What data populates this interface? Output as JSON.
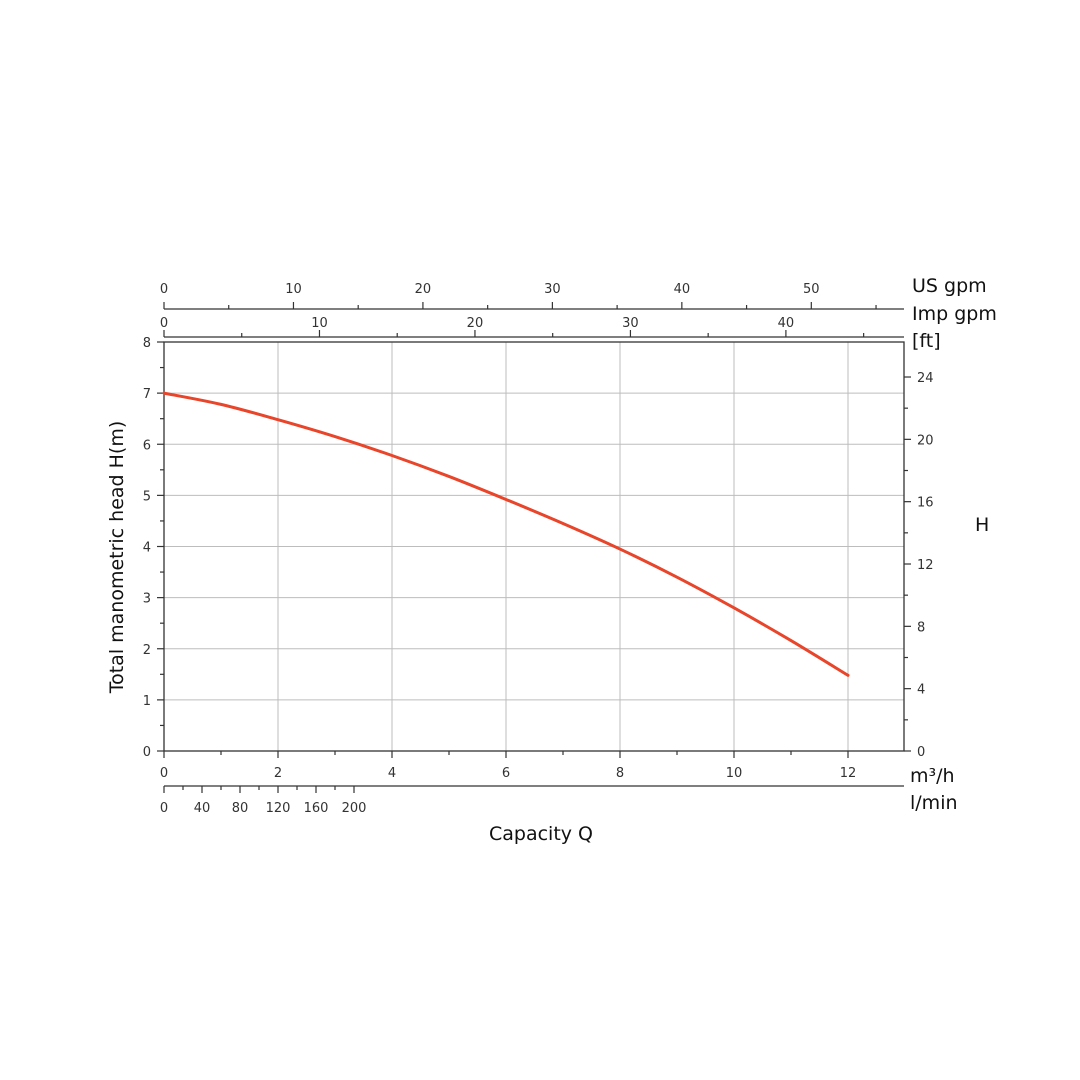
{
  "chart_data": {
    "type": "line",
    "title": "",
    "xlabel": "Capacity Q",
    "ylabel": "Total manometric head H(m)",
    "grid": true,
    "colors": {
      "curve": "#e8452a",
      "grid": "#bdbdbd",
      "axis": "#333333"
    },
    "x_axis_primary": {
      "unit": "m³/h",
      "range": [
        0,
        13
      ],
      "ticks": [
        0,
        2,
        4,
        6,
        8,
        10,
        12
      ],
      "tick_labels": [
        "0",
        "2",
        "4",
        "6",
        "8",
        "10",
        "12"
      ]
    },
    "x_axis_lmin": {
      "unit": "l/min",
      "ticks": [
        0,
        40,
        80,
        120,
        160,
        200
      ],
      "tick_labels": [
        "0",
        "40",
        "80",
        "120",
        "160",
        "200"
      ]
    },
    "x_axis_usgpm": {
      "unit": "US gpm",
      "ticks": [
        0,
        10,
        20,
        30,
        40,
        50
      ],
      "tick_labels": [
        "0",
        "10",
        "20",
        "30",
        "40",
        "50"
      ]
    },
    "x_axis_impgpm": {
      "unit": "Imp gpm",
      "ticks": [
        0,
        10,
        20,
        30,
        40
      ],
      "tick_labels": [
        "0",
        "10",
        "20",
        "30",
        "40"
      ]
    },
    "y_axis_left": {
      "unit": "m",
      "range": [
        0,
        8
      ],
      "ticks": [
        0,
        1,
        2,
        3,
        4,
        5,
        6,
        7,
        8
      ],
      "tick_labels": [
        "0",
        "1",
        "2",
        "3",
        "4",
        "5",
        "6",
        "7",
        "8"
      ]
    },
    "y_axis_right": {
      "unit": "[ft]",
      "title": "H",
      "ticks": [
        0,
        4,
        8,
        12,
        16,
        20,
        24
      ],
      "tick_labels": [
        "0",
        "4",
        "8",
        "12",
        "16",
        "20",
        "24"
      ]
    },
    "series": [
      {
        "x": [
          0,
          1,
          2,
          3,
          4,
          5,
          6,
          7,
          8,
          9,
          10,
          11,
          12
        ],
        "y": [
          7.0,
          6.78,
          6.48,
          6.15,
          5.78,
          5.37,
          4.92,
          4.45,
          3.95,
          3.4,
          2.8,
          2.16,
          1.48
        ]
      }
    ]
  }
}
